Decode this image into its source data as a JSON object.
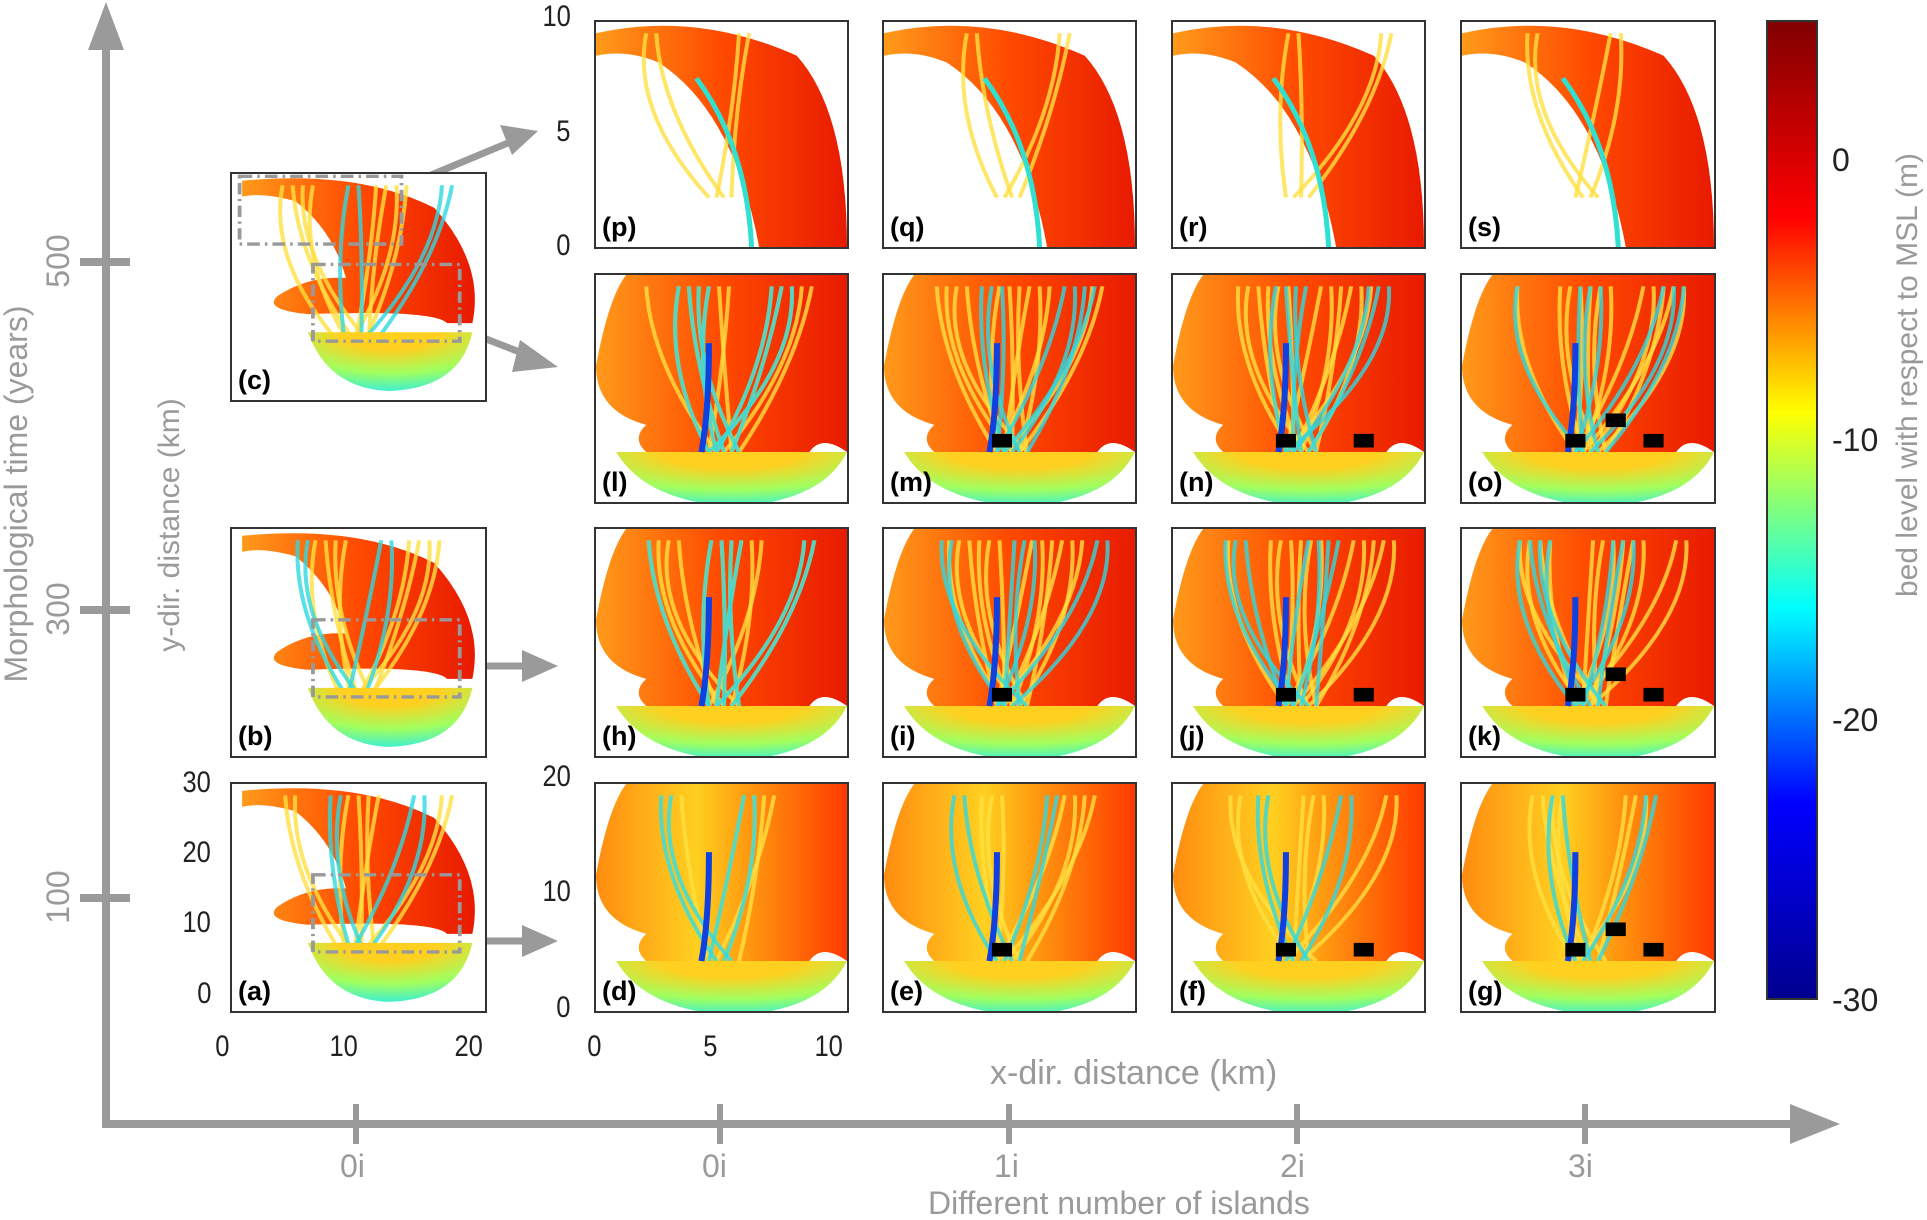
{
  "time_axis": {
    "label": "Morphological time (years)",
    "ticks": [
      "500",
      "300",
      "100"
    ]
  },
  "islands_axis": {
    "label": "Different number of islands",
    "ticks": [
      "0i",
      "0i",
      "1i",
      "2i",
      "3i"
    ]
  },
  "x_label": "x-dir. distance (km)",
  "y_label": "y-dir. distance (km)",
  "left_panels": {
    "labels": [
      "(c)",
      "(b)",
      "(a)"
    ],
    "y_ticks": [
      "30",
      "20",
      "10",
      "0"
    ],
    "x_ticks": [
      "0",
      "10",
      "20"
    ]
  },
  "grid_panels": {
    "rows": [
      {
        "labels": [
          "(p)",
          "(q)",
          "(r)",
          "(s)"
        ]
      },
      {
        "labels": [
          "(l)",
          "(m)",
          "(n)",
          "(o)"
        ]
      },
      {
        "labels": [
          "(h)",
          "(i)",
          "(j)",
          "(k)"
        ]
      },
      {
        "labels": [
          "(d)",
          "(e)",
          "(f)",
          "(g)"
        ]
      }
    ],
    "top_y_ticks": [
      "10",
      "5",
      "0"
    ],
    "bottom_y_ticks": [
      "20",
      "10",
      "0"
    ],
    "x_ticks": [
      "0",
      "5",
      "10"
    ],
    "islands_per_column": [
      0,
      1,
      2,
      3
    ]
  },
  "colorbar": {
    "label": "bed level with respect to MSL (m)",
    "ticks": [
      "0",
      "-10",
      "-20",
      "-30"
    ],
    "range": [
      -30,
      4
    ],
    "colors": [
      "#00008f",
      "#0000ff",
      "#00ffff",
      "#ffff00",
      "#ff0000",
      "#800000"
    ]
  }
}
